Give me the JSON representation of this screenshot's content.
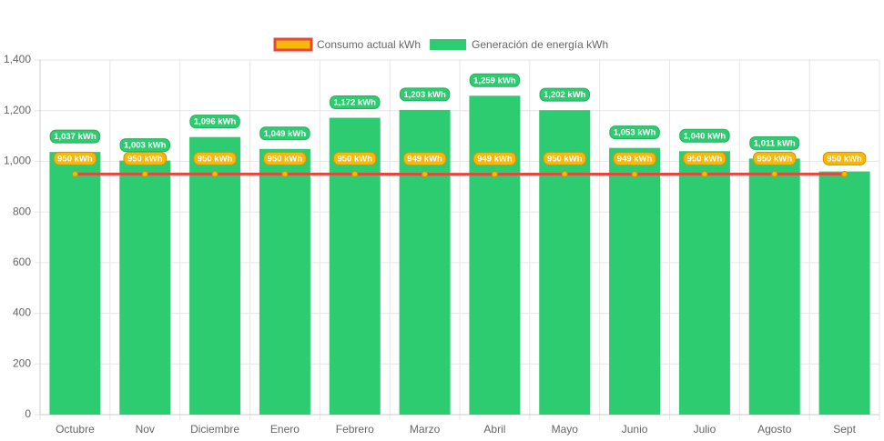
{
  "chart_data": {
    "type": "bar",
    "categories": [
      "Octubre",
      "Nov",
      "Diciembre",
      "Enero",
      "Febrero",
      "Marzo",
      "Abril",
      "Mayo",
      "Junio",
      "Julio",
      "Agosto",
      "Sept"
    ],
    "series": [
      {
        "name": "Consumo actual kWh",
        "type": "line",
        "color": "#e8453c",
        "fill_color": "#f5b80b",
        "values": [
          950,
          950,
          950,
          950,
          950,
          949,
          949,
          950,
          949,
          950,
          950,
          950
        ],
        "value_labels": [
          "950 kWh",
          "950 kWh",
          "950 kWh",
          "950 kWh",
          "950 kWh",
          "949 kWh",
          "949 kWh",
          "950 kWh",
          "949 kWh",
          "950 kWh",
          "950 kWh",
          "950 kWh"
        ]
      },
      {
        "name": "Generación de energía kWh",
        "type": "bar",
        "color": "#2ecc71",
        "values": [
          1037,
          1003,
          1096,
          1049,
          1172,
          1203,
          1259,
          1202,
          1053,
          1040,
          1011,
          960
        ],
        "value_labels": [
          "1,037 kWh",
          "1,003 kWh",
          "1,096 kWh",
          "1,049 kWh",
          "1,172 kWh",
          "1,203 kWh",
          "1,259 kWh",
          "1,202 kWh",
          "1,053 kWh",
          "1,040 kWh",
          "1,011 kWh",
          null
        ]
      }
    ],
    "ylim": [
      0,
      1400
    ],
    "yticks": [
      0,
      200,
      400,
      600,
      800,
      {
        "value": 1000,
        "label": "1,000"
      },
      {
        "value": 1200,
        "label": "1,200"
      },
      {
        "value": 1400,
        "label": "1,400"
      }
    ],
    "grid": true
  }
}
